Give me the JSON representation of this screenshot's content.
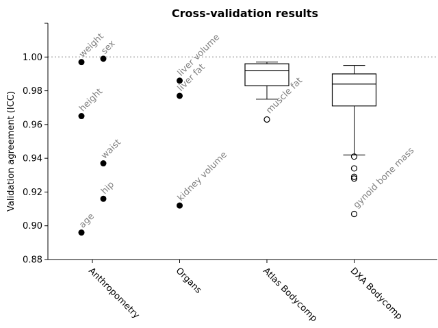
{
  "chart_data": {
    "type": "scatter",
    "title": "Cross-validation results",
    "ylabel": "Validation agreement (ICC)",
    "xlabel": "",
    "ylim": [
      0.88,
      1.02
    ],
    "yticks": [
      0.88,
      0.9,
      0.92,
      0.94,
      0.96,
      0.98,
      1.0
    ],
    "reference_line": 1.0,
    "grid": false,
    "categories": [
      "Anthropometry",
      "Organs",
      "Atlas Bodycomp",
      "DXA Bodycomp"
    ],
    "points": [
      {
        "category": "Anthropometry",
        "offset": -0.25,
        "value": 0.997,
        "label": "weight"
      },
      {
        "category": "Anthropometry",
        "offset": 0.25,
        "value": 0.999,
        "label": "sex"
      },
      {
        "category": "Anthropometry",
        "offset": -0.25,
        "value": 0.965,
        "label": "height"
      },
      {
        "category": "Anthropometry",
        "offset": 0.25,
        "value": 0.937,
        "label": "waist"
      },
      {
        "category": "Anthropometry",
        "offset": 0.25,
        "value": 0.916,
        "label": "hip"
      },
      {
        "category": "Anthropometry",
        "offset": -0.25,
        "value": 0.896,
        "label": "age"
      },
      {
        "category": "Organs",
        "offset": 0,
        "value": 0.986,
        "label": "liver volume"
      },
      {
        "category": "Organs",
        "offset": 0,
        "value": 0.977,
        "label": "liver fat"
      },
      {
        "category": "Organs",
        "offset": 0,
        "value": 0.912,
        "label": "kidney volume"
      }
    ],
    "boxes": [
      {
        "category": "Atlas Bodycomp",
        "whisker_low": 0.975,
        "q1": 0.983,
        "median": 0.992,
        "q3": 0.996,
        "whisker_high": 0.997,
        "outliers": [
          0.963
        ],
        "outlier_label": {
          "value": 0.963,
          "label": "muscle fat"
        }
      },
      {
        "category": "DXA Bodycomp",
        "whisker_low": 0.942,
        "q1": 0.971,
        "median": 0.984,
        "q3": 0.99,
        "whisker_high": 0.995,
        "outliers": [
          0.941,
          0.934,
          0.929,
          0.928,
          0.907
        ],
        "outlier_label": {
          "value": 0.907,
          "label": "gynoid bone mass"
        }
      }
    ]
  }
}
